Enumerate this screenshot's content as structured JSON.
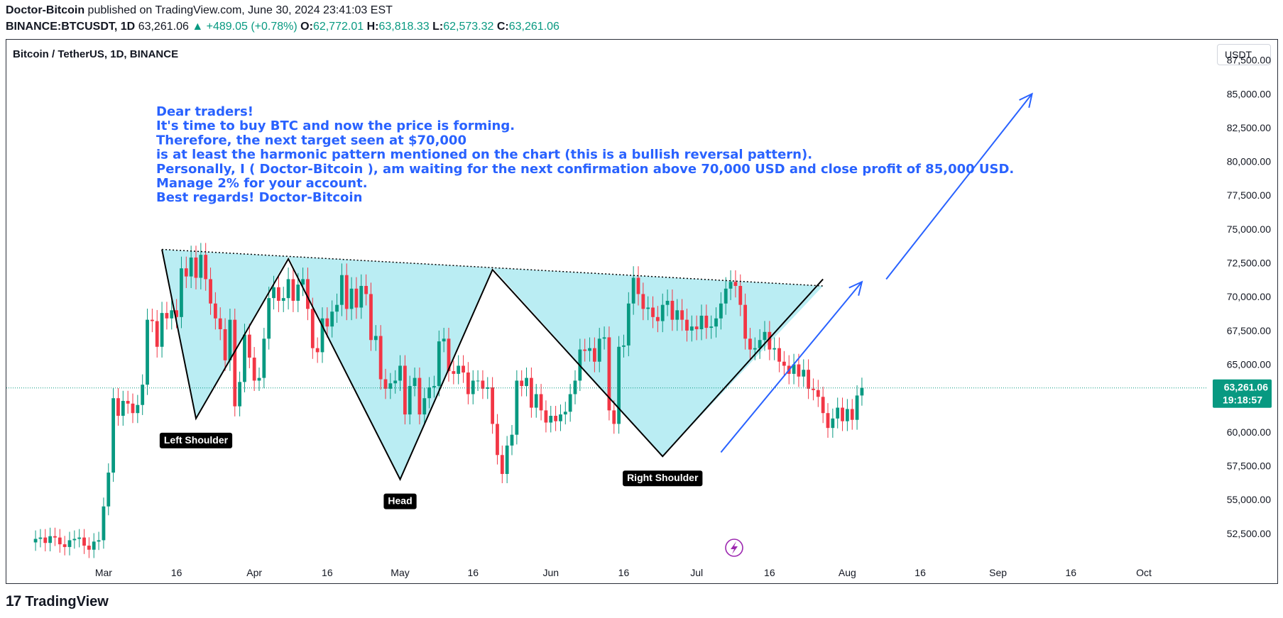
{
  "header": {
    "author": "Doctor-Bitcoin",
    "published_text": " published on TradingView.com, June 30, 2024 23:41:03 EST",
    "symbol": "BINANCE:BTCUSDT, 1D",
    "last": "63,261.06",
    "change": "▲ +489.05 (+0.78%)",
    "o_label": "O:",
    "o": "62,772.01",
    "h_label": "H:",
    "h": "63,818.33",
    "l_label": "L:",
    "l": "62,573.32",
    "c_label": "C:",
    "c": "63,261.06"
  },
  "chart_title": "Bitcoin / TetherUS, 1D, BINANCE",
  "currency": "USDT",
  "footer": {
    "brand": "TradingView",
    "logo_icon": "tradingview-logo-icon"
  },
  "colors": {
    "up": "#089981",
    "down": "#f23645",
    "pattern_fill": "#b2ebf2",
    "note": "#2962ff"
  },
  "chart_data": {
    "type": "candlestick",
    "timeframe": "1D",
    "ylim": [
      50500,
      89000
    ],
    "y_ticks": [
      52500,
      55000,
      57500,
      60000,
      62500,
      65000,
      67500,
      70000,
      72500,
      75000,
      77500,
      80000,
      82500,
      85000,
      87500
    ],
    "y_tick_labels": [
      "52,500.00",
      "55,000.00",
      "57,500.00",
      "60,000.00",
      "62,500.00",
      "65,000.00",
      "67,500.00",
      "70,000.00",
      "72,500.00",
      "75,000.00",
      "77,500.00",
      "80,000.00",
      "82,500.00",
      "85,000.00",
      "87,500.00"
    ],
    "x_range": [
      "2024-02-10",
      "2024-10-14"
    ],
    "x_ticks": [
      {
        "date": "2024-03-01",
        "label": "Mar"
      },
      {
        "date": "2024-03-16",
        "label": "16"
      },
      {
        "date": "2024-04-01",
        "label": "Apr"
      },
      {
        "date": "2024-04-16",
        "label": "16"
      },
      {
        "date": "2024-05-01",
        "label": "May"
      },
      {
        "date": "2024-05-16",
        "label": "16"
      },
      {
        "date": "2024-06-01",
        "label": "Jun"
      },
      {
        "date": "2024-06-16",
        "label": "16"
      },
      {
        "date": "2024-07-01",
        "label": "Jul"
      },
      {
        "date": "2024-07-16",
        "label": "16"
      },
      {
        "date": "2024-08-01",
        "label": "Aug"
      },
      {
        "date": "2024-08-16",
        "label": "16"
      },
      {
        "date": "2024-09-01",
        "label": "Sep"
      },
      {
        "date": "2024-09-16",
        "label": "16"
      },
      {
        "date": "2024-10-01",
        "label": "Oct"
      }
    ],
    "candles_start": "2024-02-16",
    "closes": [
      52100,
      52200,
      51800,
      52300,
      52200,
      51700,
      51500,
      52000,
      52100,
      52200,
      51600,
      51300,
      51900,
      52000,
      54500,
      57000,
      62500,
      61200,
      62300,
      62100,
      61400,
      62000,
      63500,
      68300,
      68200,
      66300,
      68800,
      68400,
      69000,
      68500,
      72100,
      71500,
      72900,
      71400,
      73100,
      71300,
      69500,
      68400,
      67600,
      65300,
      68300,
      61900,
      63700,
      67200,
      65500,
      63800,
      64000,
      66900,
      69900,
      70700,
      69700,
      69900,
      71300,
      69700,
      70900,
      71300,
      69100,
      66200,
      65900,
      68400,
      67800,
      68900,
      69400,
      71600,
      69100,
      70600,
      69200,
      70800,
      70200,
      66800,
      67100,
      63900,
      63200,
      63600,
      63800,
      64900,
      61300,
      63400,
      64000,
      61300,
      62500,
      63300,
      63400,
      66700,
      66900,
      64500,
      64300,
      64900,
      64400,
      62800,
      63800,
      63800,
      63200,
      63300,
      60600,
      58300,
      56900,
      59000,
      59800,
      63800,
      63400,
      64000,
      61800,
      62800,
      61600,
      60700,
      61200,
      60800,
      61300,
      61500,
      62800,
      63800,
      66100,
      66000,
      66200,
      65200,
      66900,
      67000,
      61600,
      60600,
      66300,
      66400,
      69500,
      71400,
      70200,
      69100,
      69200,
      68500,
      68200,
      69400,
      69700,
      68300,
      69000,
      68300,
      67500,
      67800,
      67600,
      68600,
      67700,
      67800,
      68400,
      69500,
      70600,
      71100,
      70800,
      69400,
      66900,
      66100,
      66200,
      66800,
      67400,
      66100,
      66200,
      65200,
      64900,
      64300,
      65000,
      64100,
      64600,
      63200,
      63100,
      62600,
      61400,
      60300,
      61000,
      61800,
      60800,
      61700,
      60900,
      62700,
      63261
    ]
  },
  "annotation": {
    "lines": [
      "Dear traders!",
      "It's time to buy BTC and now the price is forming.",
      "Therefore, the next target seen at $70,000",
      "is at least the harmonic pattern mentioned on the chart (this is a bullish reversal pattern).",
      "Personally, I ( Doctor-Bitcoin ), am waiting for the next confirmation above 70,000 USD and close profit of 85,000 USD.",
      "Manage 2% for your account.",
      "Best regards! Doctor-Bitcoin"
    ]
  },
  "pattern": {
    "neckline": [
      {
        "date": "2024-03-13",
        "price": 73500
      },
      {
        "date": "2024-07-27",
        "price": 70800
      }
    ],
    "zigzag": [
      {
        "date": "2024-03-13",
        "price": 73500
      },
      {
        "date": "2024-03-20",
        "price": 61000
      },
      {
        "date": "2024-04-08",
        "price": 72800
      },
      {
        "date": "2024-05-01",
        "price": 56500
      },
      {
        "date": "2024-05-20",
        "price": 72000
      },
      {
        "date": "2024-06-24",
        "price": 58200
      },
      {
        "date": "2024-07-27",
        "price": 71300
      }
    ],
    "labels": [
      {
        "text": "Left Shoulder",
        "date": "2024-03-20",
        "price": 61000
      },
      {
        "text": "Head",
        "date": "2024-05-01",
        "price": 56500
      },
      {
        "text": "Right Shoulder",
        "date": "2024-06-24",
        "price": 58200
      }
    ],
    "arrows": [
      {
        "from": {
          "date": "2024-07-06",
          "price": 58500
        },
        "to": {
          "date": "2024-08-04",
          "price": 71100
        }
      },
      {
        "from": {
          "date": "2024-08-09",
          "price": 71300
        },
        "to": {
          "date": "2024-09-08",
          "price": 85000
        }
      }
    ]
  },
  "last_price": {
    "value": 63261.06,
    "label": "63,261.06",
    "countdown": "19:18:57"
  }
}
